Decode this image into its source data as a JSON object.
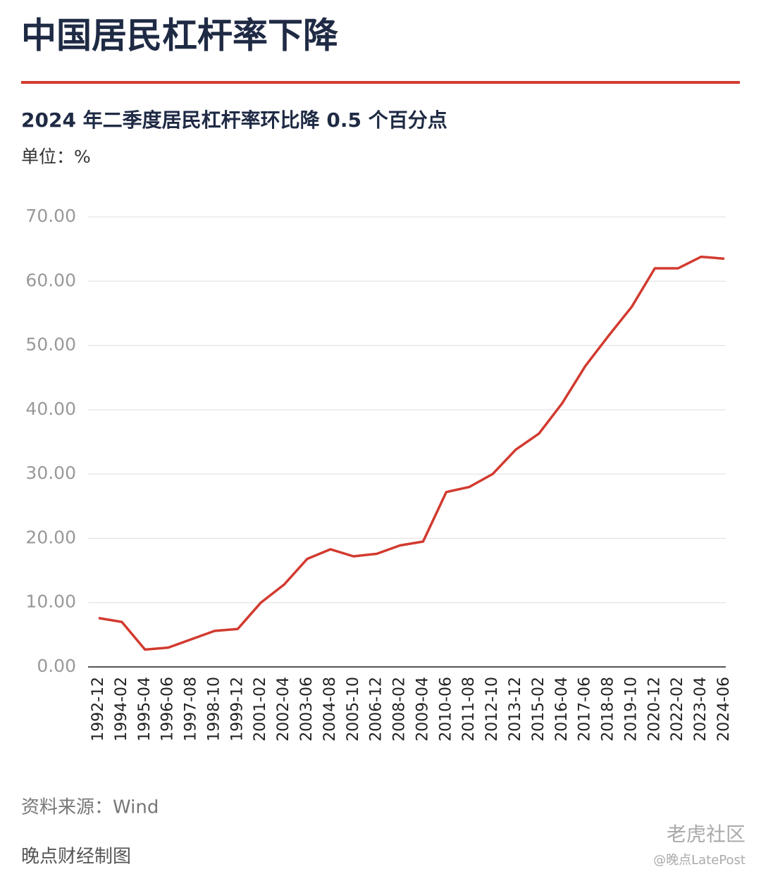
{
  "chart_data": {
    "type": "line",
    "title": "中国居民杠杆率下降",
    "subtitle": "2024 年二季度居民杠杆率环比降 0.5 个百分点",
    "unit_label": "单位：%",
    "source": "资料来源：Wind",
    "credit": "晚点财经制图",
    "watermark": [
      "老虎社区",
      "@晚点LatePost"
    ],
    "categories": [
      "1992-12",
      "1994-02",
      "1995-04",
      "1996-06",
      "1997-08",
      "1998-10",
      "1999-12",
      "2001-02",
      "2002-04",
      "2003-06",
      "2004-08",
      "2005-10",
      "2006-12",
      "2008-02",
      "2009-04",
      "2010-06",
      "2011-08",
      "2012-10",
      "2013-12",
      "2015-02",
      "2016-04",
      "2017-06",
      "2018-08",
      "2019-10",
      "2020-12",
      "2022-02",
      "2023-04",
      "2024-06"
    ],
    "series": [
      {
        "name": "居民杠杆率",
        "color": "#d23a2f",
        "values": [
          7.6,
          7.0,
          2.7,
          3.0,
          4.3,
          5.6,
          5.9,
          10.0,
          12.8,
          16.8,
          18.3,
          17.2,
          17.6,
          18.9,
          19.5,
          27.2,
          28.0,
          30.0,
          33.8,
          36.3,
          41.0,
          46.8,
          51.5,
          56.0,
          62.0,
          62.0,
          63.8,
          63.5
        ]
      }
    ],
    "ylim": [
      0,
      70
    ],
    "yticks": [
      {
        "value": 0,
        "label": "0.00"
      },
      {
        "value": 10,
        "label": "10.00"
      },
      {
        "value": 20,
        "label": "20.00"
      },
      {
        "value": 30,
        "label": "30.00"
      },
      {
        "value": 40,
        "label": "40.00"
      },
      {
        "value": 50,
        "label": "50.00"
      },
      {
        "value": 60,
        "label": "60.00"
      },
      {
        "value": 70,
        "label": "70.00"
      }
    ],
    "grid": true
  }
}
